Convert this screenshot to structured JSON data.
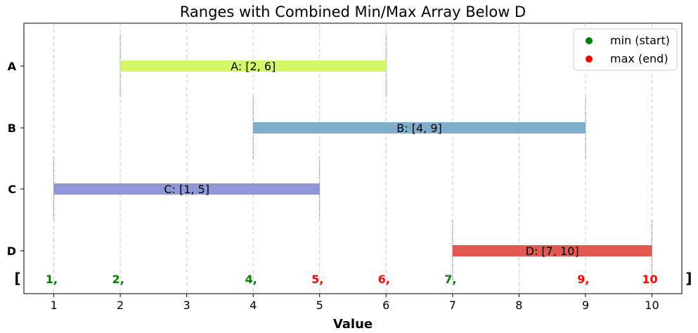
{
  "chart_data": {
    "type": "bar",
    "orientation": "horizontal-range",
    "title": "Ranges with Combined Min/Max Array Below D",
    "xlabel": "Value",
    "ylabel": "",
    "xlim": [
      0.55,
      10.45
    ],
    "xticks": [
      1,
      2,
      3,
      4,
      5,
      6,
      7,
      8,
      9,
      10
    ],
    "grid": "x-dashed",
    "legend_position": "top-right",
    "ranges": [
      {
        "name": "A",
        "start": 2,
        "end": 6,
        "label": "A: [2, 6]",
        "color": "#d4f76a"
      },
      {
        "name": "B",
        "start": 4,
        "end": 9,
        "label": "B: [4, 9]",
        "color": "#7eaecb"
      },
      {
        "name": "C",
        "start": 1,
        "end": 5,
        "label": "C: [1, 5]",
        "color": "#8f97d8"
      },
      {
        "name": "D",
        "start": 7,
        "end": 10,
        "label": "D: [7, 10]",
        "color": "#e05a52"
      }
    ],
    "legend": [
      {
        "label": "min (start)",
        "color": "#008000"
      },
      {
        "label": "max (end)",
        "color": "#ff0000"
      }
    ],
    "combined_array": {
      "open_bracket": "[",
      "close_bracket": "]",
      "items": [
        {
          "value": 1,
          "text": "1,",
          "kind": "min"
        },
        {
          "value": 2,
          "text": "2,",
          "kind": "min"
        },
        {
          "value": 4,
          "text": "4,",
          "kind": "min"
        },
        {
          "value": 5,
          "text": "5,",
          "kind": "max"
        },
        {
          "value": 6,
          "text": "6,",
          "kind": "max"
        },
        {
          "value": 7,
          "text": "7,",
          "kind": "min"
        },
        {
          "value": 9,
          "text": "9,",
          "kind": "max"
        },
        {
          "value": 10,
          "text": "10",
          "kind": "max"
        }
      ]
    }
  }
}
